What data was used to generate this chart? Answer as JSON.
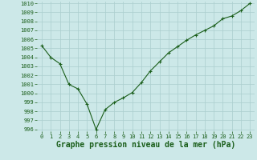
{
  "x": [
    0,
    1,
    2,
    3,
    4,
    5,
    6,
    7,
    8,
    9,
    10,
    11,
    12,
    13,
    14,
    15,
    16,
    17,
    18,
    19,
    20,
    21,
    22,
    23
  ],
  "y": [
    1005.3,
    1004.0,
    1003.3,
    1001.0,
    1000.5,
    998.8,
    996.0,
    998.2,
    999.0,
    999.5,
    1000.1,
    1001.2,
    1002.5,
    1003.5,
    1004.5,
    1005.2,
    1005.9,
    1006.5,
    1007.0,
    1007.5,
    1008.3,
    1008.6,
    1009.2,
    1010.0
  ],
  "ylim": [
    996,
    1010
  ],
  "xlim": [
    -0.5,
    23.5
  ],
  "yticks": [
    996,
    997,
    998,
    999,
    1000,
    1001,
    1002,
    1003,
    1004,
    1005,
    1006,
    1007,
    1008,
    1009,
    1010
  ],
  "xticks": [
    0,
    1,
    2,
    3,
    4,
    5,
    6,
    7,
    8,
    9,
    10,
    11,
    12,
    13,
    14,
    15,
    16,
    17,
    18,
    19,
    20,
    21,
    22,
    23
  ],
  "line_color": "#1a5e1a",
  "marker": "+",
  "bg_color": "#cce8e8",
  "grid_color": "#aacece",
  "xlabel": "Graphe pression niveau de la mer (hPa)",
  "xlabel_color": "#1a5e1a",
  "tick_color": "#1a5e1a",
  "tick_fontsize": 5.0,
  "xlabel_fontsize": 7.0,
  "linewidth": 0.8,
  "markersize": 3.5,
  "markeredgewidth": 0.8
}
